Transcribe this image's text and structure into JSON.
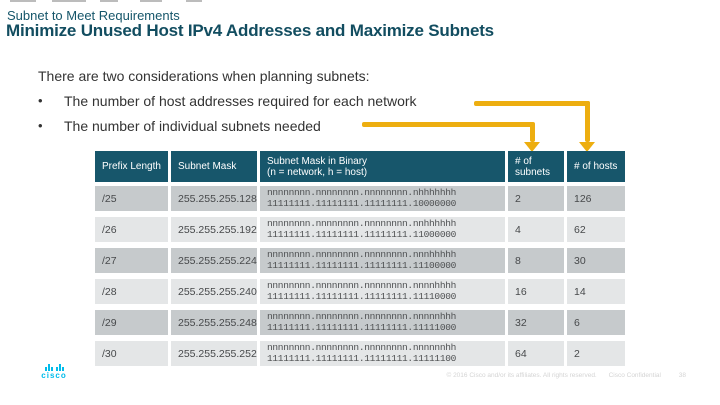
{
  "slide": {
    "pretitle": "Subnet to Meet Requirements",
    "title": "Minimize Unused Host IPv4 Addresses and Maximize Subnets"
  },
  "body": {
    "intro": "There are two considerations when planning subnets:",
    "bullets": [
      "The number of host addresses required for each network",
      "The number of individual subnets needed"
    ]
  },
  "table": {
    "headers": [
      "Prefix Length",
      "Subnet Mask",
      "Subnet Mask in Binary\n(n = network, h = host)",
      "# of subnets",
      "# of hosts"
    ],
    "rows": [
      {
        "prefix_length": "/25",
        "subnet_mask": "255.255.255.128",
        "binary_pattern": "nnnnnnnn.nnnnnnnn.nnnnnnnn.nhhhhhhh",
        "binary_bits": "11111111.11111111.11111111.10000000",
        "num_subnets": "2",
        "num_hosts": "126"
      },
      {
        "prefix_length": "/26",
        "subnet_mask": "255.255.255.192",
        "binary_pattern": "nnnnnnnn.nnnnnnnn.nnnnnnnn.nnhhhhhh",
        "binary_bits": "11111111.11111111.11111111.11000000",
        "num_subnets": "4",
        "num_hosts": "62"
      },
      {
        "prefix_length": "/27",
        "subnet_mask": "255.255.255.224",
        "binary_pattern": "nnnnnnnn.nnnnnnnn.nnnnnnnn.nnnhhhhh",
        "binary_bits": "11111111.11111111.11111111.11100000",
        "num_subnets": "8",
        "num_hosts": "30"
      },
      {
        "prefix_length": "/28",
        "subnet_mask": "255.255.255.240",
        "binary_pattern": "nnnnnnnn.nnnnnnnn.nnnnnnnn.nnnnhhhh",
        "binary_bits": "11111111.11111111.11111111.11110000",
        "num_subnets": "16",
        "num_hosts": "14"
      },
      {
        "prefix_length": "/29",
        "subnet_mask": "255.255.255.248",
        "binary_pattern": "nnnnnnnn.nnnnnnnn.nnnnnnnn.nnnnnhhh",
        "binary_bits": "11111111.11111111.11111111.11111000",
        "num_subnets": "32",
        "num_hosts": "6"
      },
      {
        "prefix_length": "/30",
        "subnet_mask": "255.255.255.252",
        "binary_pattern": "nnnnnnnn.nnnnnnnn.nnnnnnnn.nnnnnnhh",
        "binary_bits": "11111111.11111111.11111111.11111100",
        "num_subnets": "64",
        "num_hosts": "2"
      }
    ]
  },
  "footer": {
    "copyright": "© 2016  Cisco and/or its affiliates. All rights reserved.",
    "confidential": "Cisco Confidential",
    "page_number": "38",
    "logo_text": "cisco"
  },
  "colors": {
    "title_teal": "#124d60",
    "table_header_teal": "#17566b",
    "row_dark_gray": "#c6cacc",
    "row_light_gray": "#e4e6e7",
    "arrow_yellow": "#edae10",
    "logo_blue": "#00bceb"
  }
}
